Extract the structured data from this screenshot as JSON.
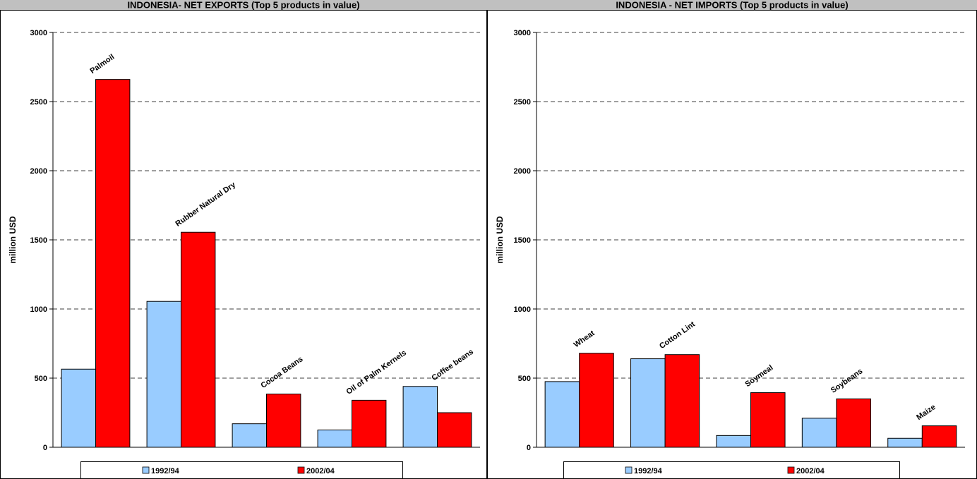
{
  "legend_labels": [
    "1992/94",
    "2002/04"
  ],
  "colors": {
    "series1": "#99ccff",
    "series2": "#ff0000",
    "header_bg": "#c0c0c0",
    "grid": "#000000"
  },
  "chart_data": [
    {
      "type": "bar",
      "title": "INDONESIA- NET EXPORTS (Top 5 products in value)",
      "ylabel": "million USD",
      "ylim": [
        0,
        3000
      ],
      "yticks": [
        0,
        500,
        1000,
        1500,
        2000,
        2500,
        3000
      ],
      "grid": true,
      "legend": "bottom",
      "categories": [
        "Palmoil",
        "Rubber Natural Dry",
        "Cocoa Beans",
        "Oil of Palm Kernels",
        "Coffee beans"
      ],
      "series": [
        {
          "name": "1992/94",
          "values": [
            565,
            1055,
            170,
            125,
            440
          ]
        },
        {
          "name": "2002/04",
          "values": [
            2660,
            1555,
            385,
            340,
            250
          ]
        }
      ]
    },
    {
      "type": "bar",
      "title": "INDONESIA - NET IMPORTS (Top 5 products in value)",
      "ylabel": "million USD",
      "ylim": [
        0,
        3000
      ],
      "yticks": [
        0,
        500,
        1000,
        1500,
        2000,
        2500,
        3000
      ],
      "grid": true,
      "legend": "bottom",
      "categories": [
        "Wheat",
        "Cotton Lint",
        "Soymeal",
        "Soybeans",
        "Maize"
      ],
      "series": [
        {
          "name": "1992/94",
          "values": [
            475,
            640,
            85,
            210,
            65
          ]
        },
        {
          "name": "2002/04",
          "values": [
            680,
            670,
            395,
            350,
            155
          ]
        }
      ]
    }
  ]
}
